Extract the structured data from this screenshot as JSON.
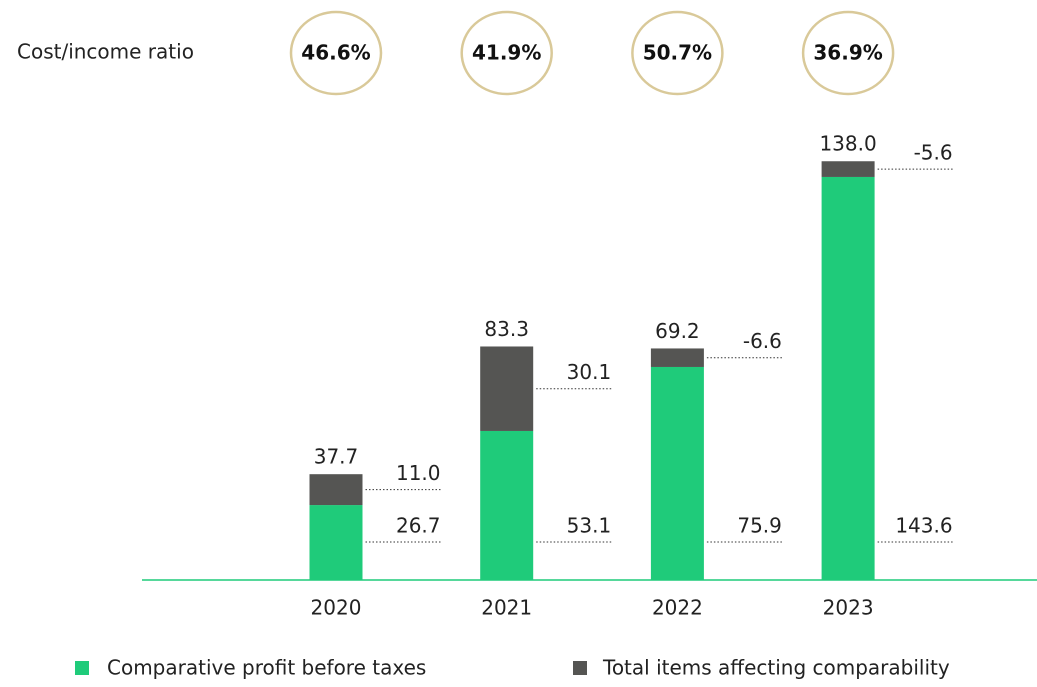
{
  "chart_data": {
    "type": "bar",
    "ratio": {
      "label": "Cost/income ratio",
      "values": [
        46.6,
        41.9,
        50.7,
        36.9
      ],
      "value_labels": [
        "46.6%",
        "41.9%",
        "50.7%",
        "36.9%"
      ],
      "color": "#d9c999"
    },
    "categories": [
      "2020",
      "2021",
      "2022",
      "2023"
    ],
    "series": [
      {
        "name": "Comparative profit before taxes",
        "color": "#1fcb7a",
        "values": [
          26.7,
          53.1,
          75.9,
          143.6
        ]
      },
      {
        "name": "Total items affecting comparability",
        "color": "#555553",
        "values": [
          11.0,
          30.1,
          -6.6,
          -5.6
        ],
        "value_labels": [
          "11.0",
          "30.1",
          "-6.6",
          "-5.6"
        ]
      }
    ],
    "totals": {
      "values": [
        37.7,
        83.3,
        69.2,
        138.0
      ],
      "value_labels": [
        "37.7",
        "83.3",
        "69.2",
        "138.0"
      ]
    },
    "ylim": [
      0,
      150
    ]
  }
}
